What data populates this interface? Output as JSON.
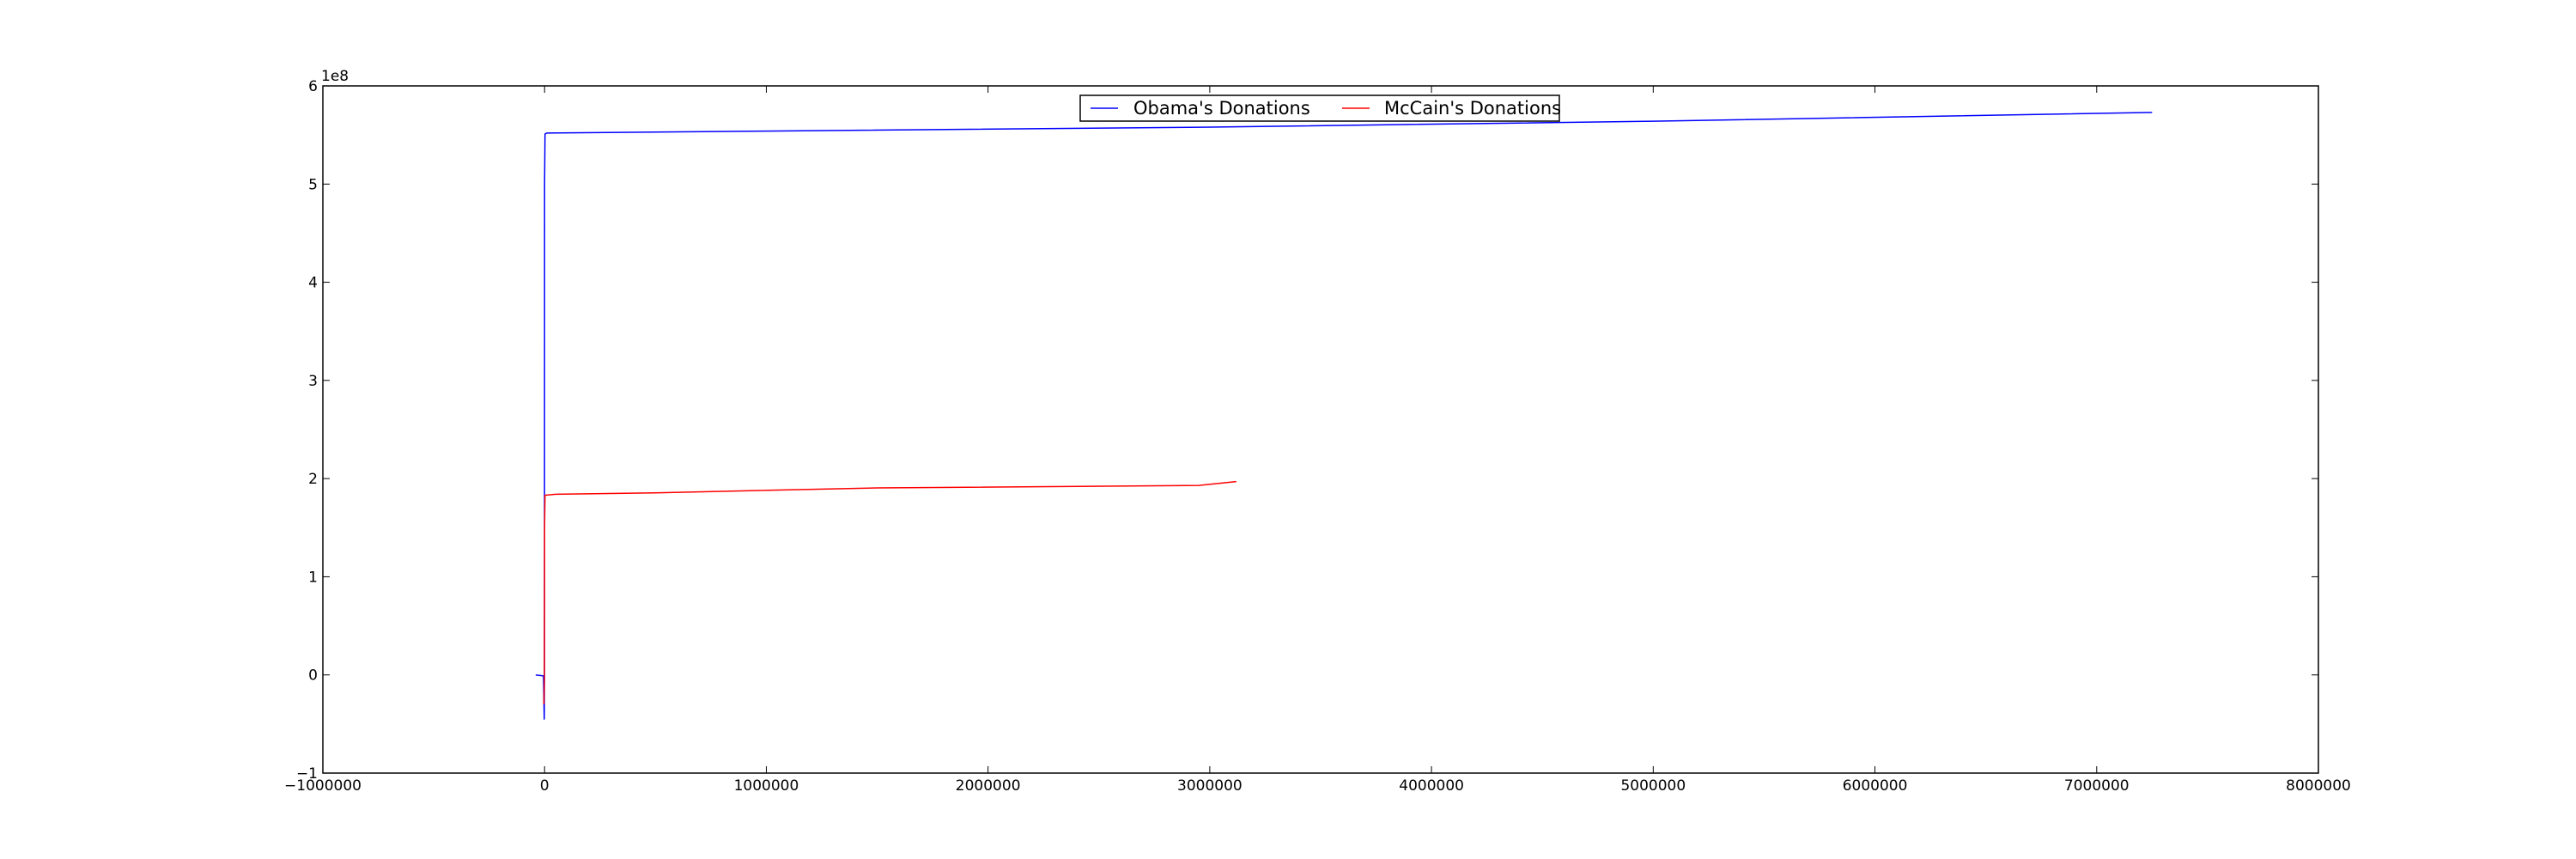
{
  "chart_data": {
    "type": "line",
    "title": "",
    "xlabel": "",
    "ylabel": "",
    "xlim": [
      -1000000,
      8000000
    ],
    "ylim": [
      -100000000,
      600000000
    ],
    "y_offset_label": "1e8",
    "x_ticks": [
      -1000000,
      0,
      1000000,
      2000000,
      3000000,
      4000000,
      5000000,
      6000000,
      7000000,
      8000000
    ],
    "x_tick_labels": [
      "−1000000",
      "0",
      "1000000",
      "2000000",
      "3000000",
      "4000000",
      "5000000",
      "6000000",
      "7000000",
      "8000000"
    ],
    "y_ticks": [
      -100000000,
      0,
      100000000,
      200000000,
      300000000,
      400000000,
      500000000,
      600000000
    ],
    "y_tick_labels": [
      "−1",
      "0",
      "1",
      "2",
      "3",
      "4",
      "5",
      "6"
    ],
    "grid": false,
    "legend_position": "top-center",
    "series": [
      {
        "name": "Obama's Donations",
        "color": "#0000ff",
        "points": [
          [
            -40000,
            0
          ],
          [
            -5000,
            -1000000
          ],
          [
            -1500,
            -45000000
          ],
          [
            -500,
            -2000000
          ],
          [
            0,
            500000000
          ],
          [
            2000,
            551000000
          ],
          [
            10000,
            552000000
          ],
          [
            1000000,
            554000000
          ],
          [
            3000000,
            558000000
          ],
          [
            5000000,
            564000000
          ],
          [
            7250000,
            573000000
          ]
        ]
      },
      {
        "name": "McCain's Donations",
        "color": "#ff0000",
        "points": [
          [
            -3000,
            -30000000
          ],
          [
            -1000,
            -2000000
          ],
          [
            0,
            150000000
          ],
          [
            2000,
            183000000
          ],
          [
            50000,
            184000000
          ],
          [
            500000,
            185500000
          ],
          [
            1500000,
            190500000
          ],
          [
            2950000,
            193000000
          ],
          [
            3120000,
            197000000
          ]
        ]
      }
    ]
  }
}
